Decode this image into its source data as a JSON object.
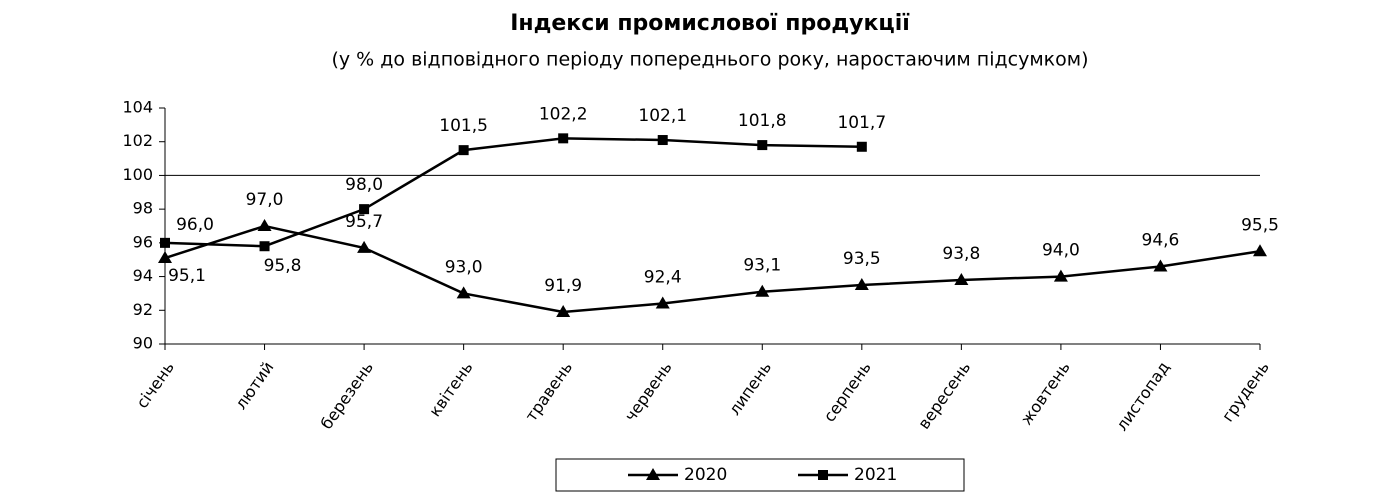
{
  "chart_data": {
    "type": "line",
    "title": "Індекси промислової продукції",
    "subtitle": "(у % до відповідного періоду попереднього року, наростаючим підсумком)",
    "categories": [
      "січень",
      "лютий",
      "березень",
      "квітень",
      "травень",
      "червень",
      "липень",
      "серпень",
      "вересень",
      "жовтень",
      "листопад",
      "грудень"
    ],
    "series": [
      {
        "name": "2020",
        "color": "#000000",
        "marker": "triangle",
        "values": [
          95.1,
          97.0,
          95.7,
          93.0,
          91.9,
          92.4,
          93.1,
          93.5,
          93.8,
          94.0,
          94.6,
          95.5
        ],
        "value_labels": [
          "95,1",
          "97,0",
          "95,7",
          "93,0",
          "91,9",
          "92,4",
          "93,1",
          "93,5",
          "93,8",
          "94,0",
          "94,6",
          "95,5"
        ]
      },
      {
        "name": "2021",
        "color": "#000000",
        "marker": "square",
        "values": [
          96.0,
          95.8,
          98.0,
          101.5,
          102.2,
          102.1,
          101.8,
          101.7,
          null,
          null,
          null,
          null
        ],
        "value_labels": [
          "96,0",
          "95,8",
          "98,0",
          "101,5",
          "102,2",
          "102,1",
          "101,8",
          "101,7",
          null,
          null,
          null,
          null
        ]
      }
    ],
    "reference_line": 100,
    "ylim": [
      90,
      104
    ],
    "yticks": [
      90,
      92,
      94,
      96,
      98,
      100,
      102,
      104
    ],
    "legend": "bottom"
  }
}
